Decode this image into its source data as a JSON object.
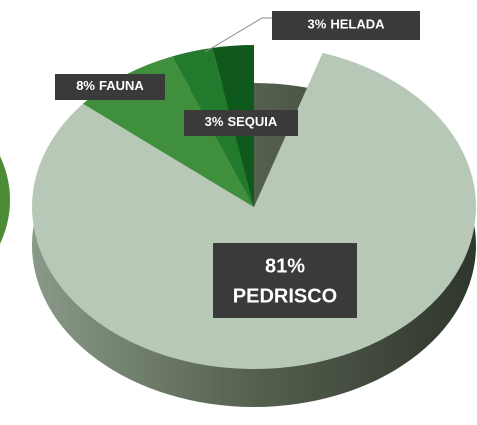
{
  "chart_data": {
    "type": "pie",
    "categories": [
      "PEDRISCO",
      "FAUNA",
      "SEQUIA",
      "HELADA"
    ],
    "values": [
      81,
      8,
      3,
      3
    ],
    "value_labels": [
      "81%",
      "8%",
      "3%",
      "3%"
    ],
    "colors": [
      "#b7c9b6",
      "#3f8f3c",
      "#227a2c",
      "#10591d"
    ]
  }
}
